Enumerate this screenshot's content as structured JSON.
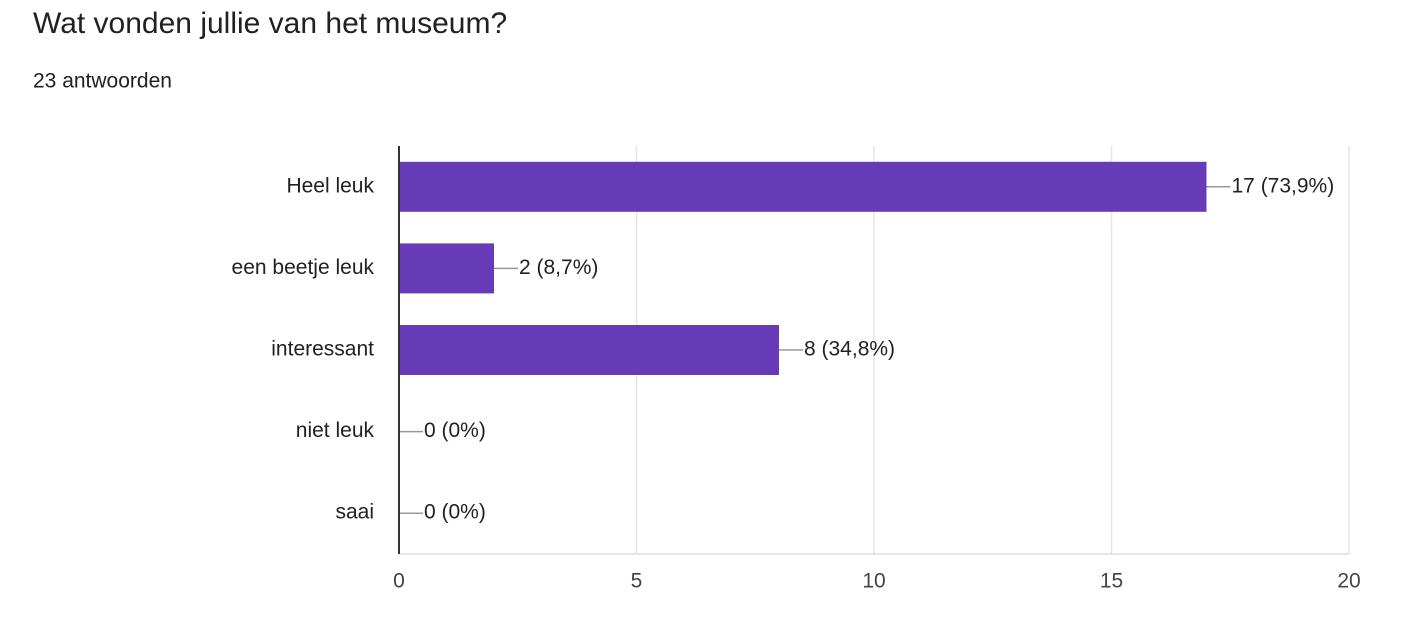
{
  "chart_data": {
    "type": "bar",
    "orientation": "horizontal",
    "title": "Wat vonden jullie van het museum?",
    "subtitle": "23 antwoorden",
    "categories": [
      "Heel leuk",
      "een beetje leuk",
      "interessant",
      "niet leuk",
      "saai"
    ],
    "values": [
      17,
      2,
      8,
      0,
      0
    ],
    "value_labels": [
      "17 (73,9%)",
      "2 (8,7%)",
      "8 (34,8%)",
      "0 (0%)",
      "0 (0%)"
    ],
    "color": "#673ab7",
    "xlim": [
      0,
      20
    ],
    "xticks": [
      0,
      5,
      10,
      15,
      20
    ],
    "grid": true
  }
}
